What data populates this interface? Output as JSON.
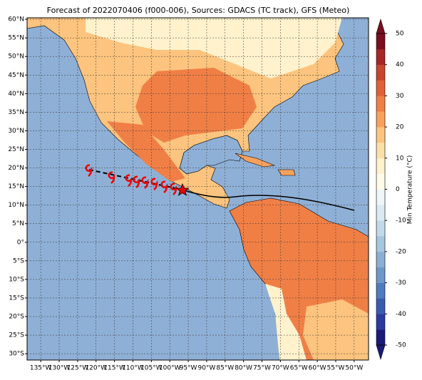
{
  "title": "Forecast of 2022070406 (f000-006), Sources: GDACS (TC track), GFS (Meteo)",
  "map": {
    "lat_lim": [
      -31.7,
      60.4
    ],
    "lon_lim": [
      -138.7,
      -46.1
    ],
    "lat_ticks": [
      {
        "value": 60,
        "label": "60°N"
      },
      {
        "value": 55,
        "label": "55°N"
      },
      {
        "value": 50,
        "label": "50°N"
      },
      {
        "value": 45,
        "label": "45°N"
      },
      {
        "value": 40,
        "label": "40°N"
      },
      {
        "value": 35,
        "label": "35°N"
      },
      {
        "value": 30,
        "label": "30°N"
      },
      {
        "value": 25,
        "label": "25°N"
      },
      {
        "value": 20,
        "label": "20°N"
      },
      {
        "value": 15,
        "label": "15°N"
      },
      {
        "value": 10,
        "label": "10°N"
      },
      {
        "value": 5,
        "label": "5°N"
      },
      {
        "value": 0,
        "label": "0°"
      },
      {
        "value": -5,
        "label": "5°S"
      },
      {
        "value": -10,
        "label": "10°S"
      },
      {
        "value": -15,
        "label": "15°S"
      },
      {
        "value": -20,
        "label": "20°S"
      },
      {
        "value": -25,
        "label": "25°S"
      },
      {
        "value": -30,
        "label": "30°S"
      }
    ],
    "lon_ticks": [
      {
        "value": -135,
        "label": "135°W"
      },
      {
        "value": -130,
        "label": "130°W"
      },
      {
        "value": -125,
        "label": "125°W"
      },
      {
        "value": -120,
        "label": "120°W"
      },
      {
        "value": -115,
        "label": "115°W"
      },
      {
        "value": -110,
        "label": "110°W"
      },
      {
        "value": -105,
        "label": "105°W"
      },
      {
        "value": -100,
        "label": "100°W"
      },
      {
        "value": -95,
        "label": "95°W"
      },
      {
        "value": -90,
        "label": "90°W"
      },
      {
        "value": -85,
        "label": "85°W"
      },
      {
        "value": -80,
        "label": "80°W"
      },
      {
        "value": -75,
        "label": "75°W"
      },
      {
        "value": -70,
        "label": "70°W"
      },
      {
        "value": -65,
        "label": "65°W"
      },
      {
        "value": -60,
        "label": "60°W"
      },
      {
        "value": -55,
        "label": "55°W"
      },
      {
        "value": -50,
        "label": "50°W"
      }
    ]
  },
  "colorbar": {
    "label": "Min Temperature (°C)",
    "lim": [
      -50,
      50
    ],
    "ticks": [
      50,
      40,
      30,
      20,
      10,
      0,
      -10,
      -20,
      -30,
      -40,
      -50
    ],
    "colors": [
      "#1a1a7a",
      "#2b3a9e",
      "#3b5bb0",
      "#4f7cbf",
      "#6d98c8",
      "#8aafd3",
      "#a6c5df",
      "#c1d9e8",
      "#dbeaf2",
      "#eef6f8",
      "#fffbe8",
      "#fff2cc",
      "#fde0a8",
      "#fcc47e",
      "#f9a15c",
      "#f07f46",
      "#e0603a",
      "#c9432e",
      "#a82626",
      "#7a0d1e"
    ]
  }
}
